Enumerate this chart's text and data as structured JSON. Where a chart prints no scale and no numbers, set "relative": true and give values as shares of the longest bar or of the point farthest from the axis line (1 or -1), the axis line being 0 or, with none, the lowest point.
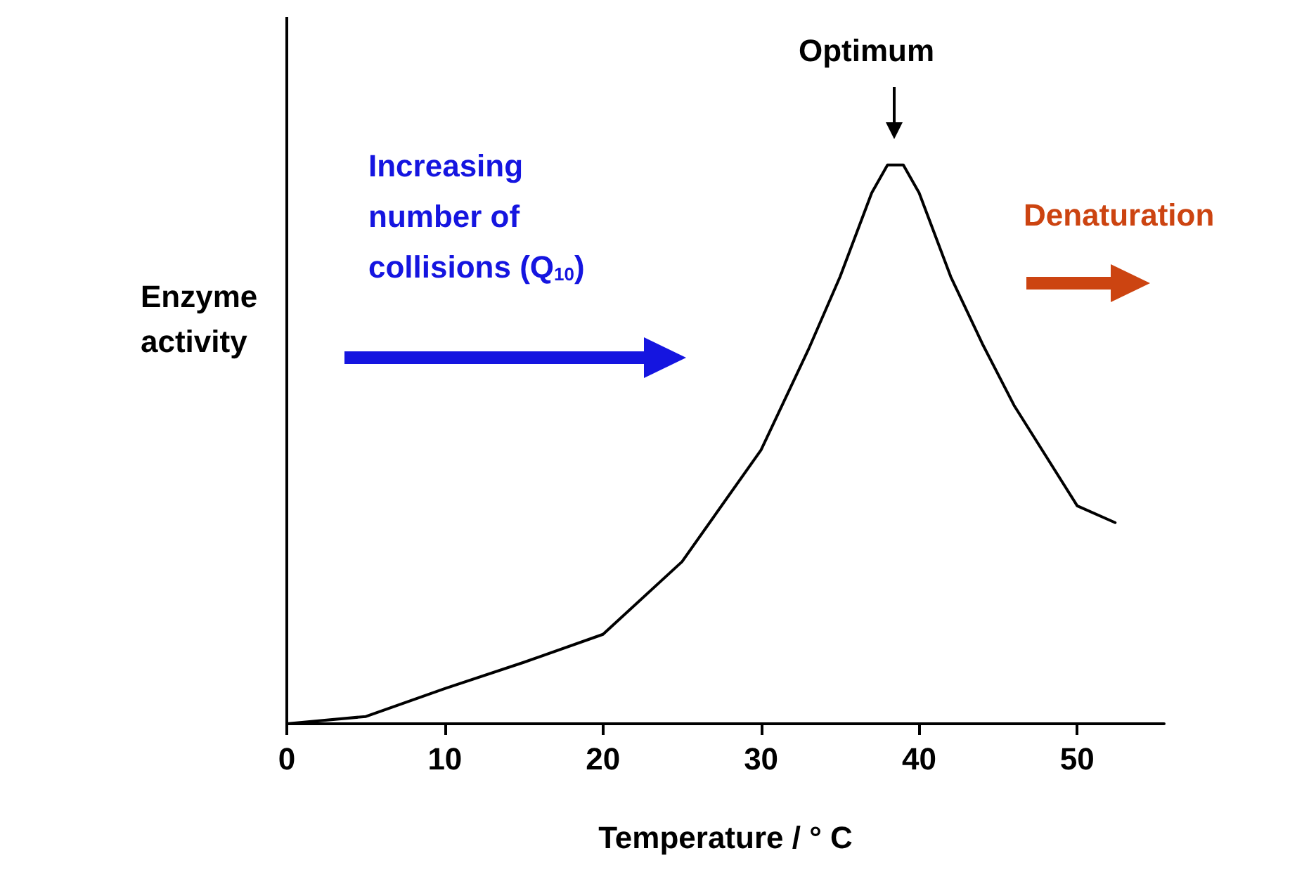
{
  "chart_data": {
    "type": "line",
    "relative": true,
    "xlabel": "Temperature / ° C",
    "ylabel": "Enzyme activity",
    "x": [
      0,
      5,
      10,
      15,
      20,
      25,
      30,
      33,
      35,
      37,
      38,
      39,
      40,
      42,
      44,
      46,
      48,
      50,
      52.4
    ],
    "values": [
      0,
      0.013,
      0.063,
      0.11,
      0.16,
      0.29,
      0.49,
      0.67,
      0.8,
      0.95,
      1,
      1,
      0.95,
      0.8,
      0.68,
      0.57,
      0.48,
      0.39,
      0.36
    ],
    "color": "#000000",
    "xlim": [
      0,
      55.5
    ],
    "xticks": [
      0,
      10,
      20,
      30,
      40,
      50
    ],
    "tick_labels": "x",
    "grid": false,
    "marker": "none",
    "line_style": "solid",
    "annotations": [
      "Optimum",
      "Increasing number of collisions (Q$_{10}$)",
      "Denaturation"
    ]
  }
}
